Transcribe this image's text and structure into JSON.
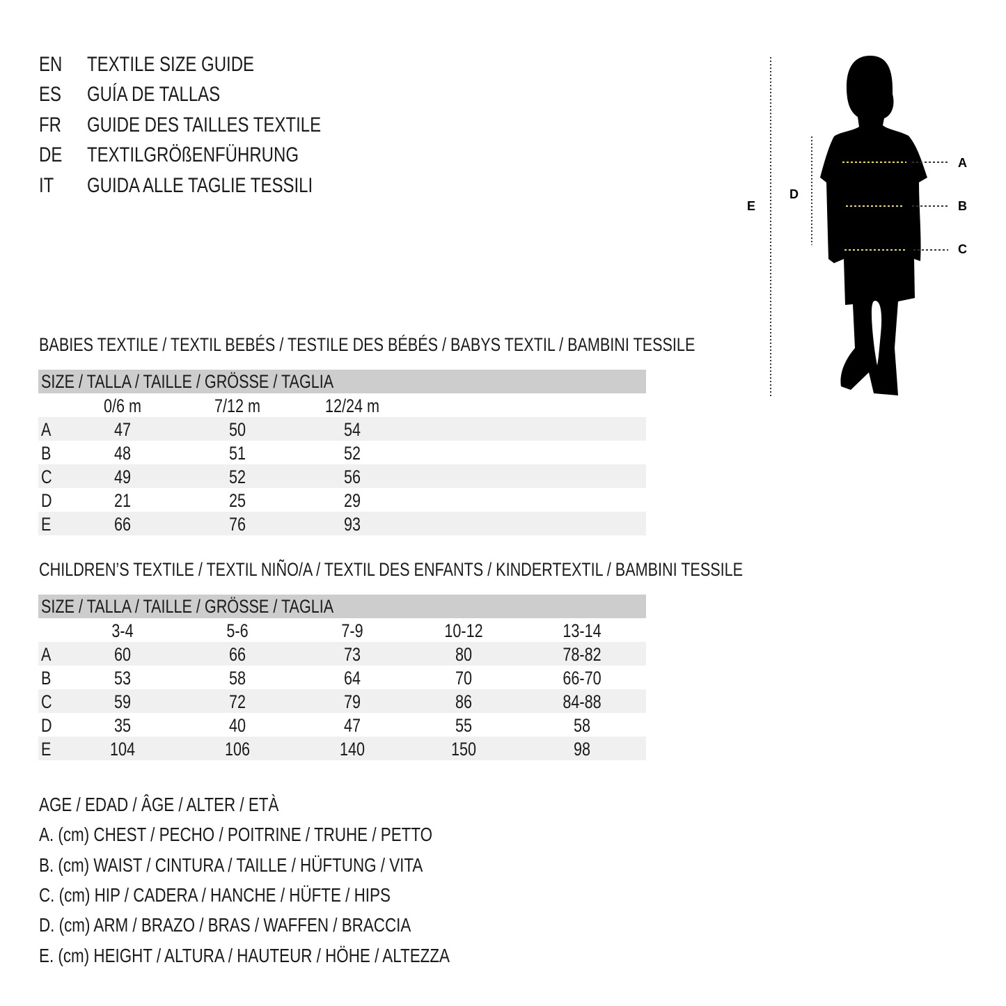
{
  "titles": [
    {
      "code": "EN",
      "text": "TEXTILE SIZE GUIDE"
    },
    {
      "code": "ES",
      "text": "GUÍA DE TALLAS"
    },
    {
      "code": "FR",
      "text": "GUIDE DES TAILLES TEXTILE"
    },
    {
      "code": "DE",
      "text": "TEXTILGRÖßENFÜHRUNG"
    },
    {
      "code": "IT",
      "text": "GUIDA ALLE TAGLIE TESSILI"
    }
  ],
  "figure": {
    "labels": {
      "a": "A",
      "b": "B",
      "c": "C",
      "d": "D",
      "e": "E"
    },
    "measure_line_color": "#f2e030"
  },
  "babies": {
    "heading": "BABIES TEXTILE / TEXTIL BEBÉS / TESTILE DES BÉBÉS / BABYS TEXTIL / BAMBINI TESSILE",
    "size_header": "SIZE / TALLA / TAILLE / GRÖSSE / TAGLIA",
    "columns": [
      "0/6 m",
      "7/12 m",
      "12/24 m"
    ],
    "rows": [
      {
        "label": "A",
        "values": [
          "47",
          "50",
          "54"
        ]
      },
      {
        "label": "B",
        "values": [
          "48",
          "51",
          "52"
        ]
      },
      {
        "label": "C",
        "values": [
          "49",
          "52",
          "56"
        ]
      },
      {
        "label": "D",
        "values": [
          "21",
          "25",
          "29"
        ]
      },
      {
        "label": "E",
        "values": [
          "66",
          "76",
          "93"
        ]
      }
    ]
  },
  "children": {
    "heading": "CHILDREN’S TEXTILE / TEXTIL NIÑO/A / TEXTIL DES ENFANTS / KINDERTEXTIL / BAMBINI TESSILE",
    "size_header": "SIZE / TALLA / TAILLE / GRÖSSE / TAGLIA",
    "columns": [
      "3-4",
      "5-6",
      "7-9",
      "10-12",
      "13-14"
    ],
    "rows": [
      {
        "label": "A",
        "values": [
          "60",
          "66",
          "73",
          "80",
          "78-82"
        ]
      },
      {
        "label": "B",
        "values": [
          "53",
          "58",
          "64",
          "70",
          "66-70"
        ]
      },
      {
        "label": "C",
        "values": [
          "59",
          "72",
          "79",
          "86",
          "84-88"
        ]
      },
      {
        "label": "D",
        "values": [
          "35",
          "40",
          "47",
          "55",
          "58"
        ]
      },
      {
        "label": "E",
        "values": [
          "104",
          "106",
          "140",
          "150",
          "98"
        ]
      }
    ]
  },
  "legend": [
    "AGE / EDAD / ÂGE / ALTER / ETÀ",
    "A. (cm) CHEST / PECHO / POITRINE / TRUHE / PETTO",
    "B. (cm) WAIST / CINTURA / TAILLE / HÜFTUNG / VITA",
    "C. (cm) HIP / CADERA / HANCHE / HÜFTE / HIPS",
    "D. (cm) ARM / BRAZO / BRAS / WAFFEN / BRACCIA",
    "E. (cm) HEIGHT / ALTURA / HAUTEUR / HÖHE / ALTEZZA"
  ]
}
